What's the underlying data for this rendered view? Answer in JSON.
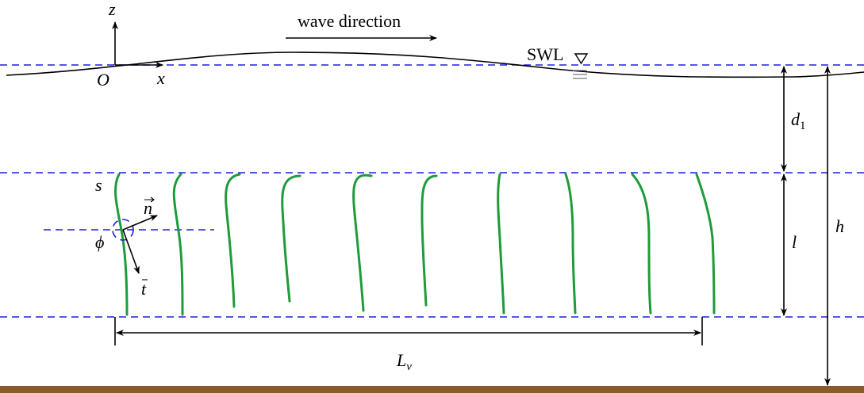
{
  "labels": {
    "z": "z",
    "origin": "O",
    "x": "x",
    "wave_direction": "wave direction",
    "swl": "SWL",
    "d1": {
      "base": "d",
      "subscript": "1"
    },
    "s": "s",
    "n": "n",
    "phi": "ϕ",
    "t": "t",
    "l": "l",
    "h": "h",
    "lv": {
      "base": "L",
      "subscript": "v"
    }
  }
}
